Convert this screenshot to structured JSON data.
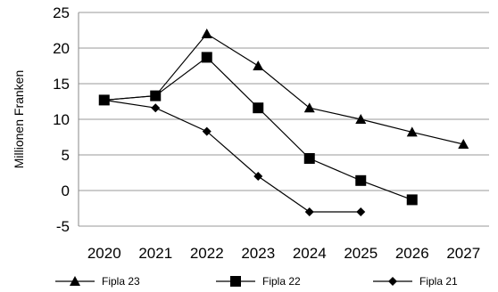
{
  "chart_data": {
    "type": "line",
    "title": "",
    "xlabel": "",
    "ylabel": "Millionen Franken",
    "x": [
      "2020",
      "2021",
      "2022",
      "2023",
      "2024",
      "2025",
      "2026",
      "2027"
    ],
    "ylim": [
      -5,
      25
    ],
    "yticks": [
      25,
      20,
      15,
      10,
      5,
      0,
      -5
    ],
    "grid": true,
    "legend_position": "bottom",
    "series": [
      {
        "name": "Fipla 23",
        "marker": "triangle",
        "values": [
          12.7,
          13.3,
          22.0,
          17.5,
          11.6,
          10.0,
          8.2,
          6.5
        ]
      },
      {
        "name": "Fipla 22",
        "marker": "square",
        "values": [
          12.7,
          13.3,
          18.7,
          11.6,
          4.5,
          1.4,
          -1.3,
          null
        ]
      },
      {
        "name": "Fipla 21",
        "marker": "diamond",
        "values": [
          12.7,
          11.6,
          8.3,
          2.0,
          -3.0,
          -3.0,
          null,
          null
        ]
      }
    ]
  }
}
